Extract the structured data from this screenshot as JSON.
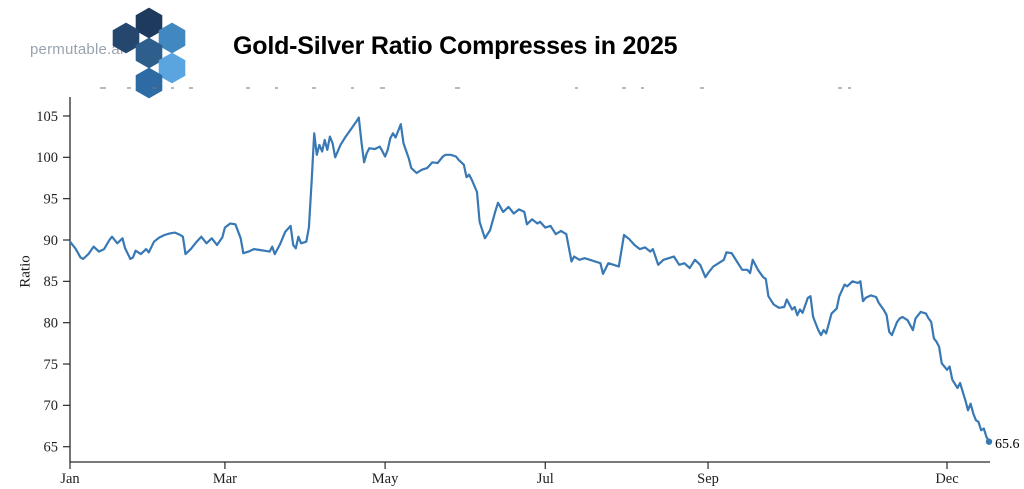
{
  "header": {
    "logo_text": "permutable.ai",
    "title": "Gold-Silver Ratio Compresses in 2025",
    "logo_hex_colors": [
      "#1e3a5c",
      "#26476d",
      "#4187c0",
      "#2d5e8c",
      "#5aa5e0",
      "#2e6ba5"
    ]
  },
  "chart_data": {
    "type": "line",
    "title": "Gold-Silver Ratio Compresses in 2025",
    "xlabel": "",
    "ylabel": "Ratio",
    "x_unit": "day of year 2025",
    "x_tick_labels": [
      "Jan",
      "Mar",
      "May",
      "Jul",
      "Sep",
      "Dec"
    ],
    "x_tick_days": [
      0,
      59,
      120,
      181,
      243,
      334
    ],
    "y_ticks": [
      65,
      70,
      75,
      80,
      85,
      90,
      95,
      100,
      105
    ],
    "ylim": [
      63.2,
      107.3
    ],
    "xlim_days": [
      0,
      350.3
    ],
    "grid": false,
    "legend": "none",
    "line_color": "#3878b4",
    "axis_color": "#2a2a2a",
    "final_label": "65.6",
    "final_value": 65.6,
    "series": [
      {
        "name": "Gold-Silver Ratio",
        "days": [
          0,
          2,
          4,
          5,
          7,
          9,
          11,
          13,
          15,
          16,
          18,
          20,
          21,
          23,
          24,
          25,
          27,
          29,
          30,
          32,
          34,
          36,
          38,
          40,
          42,
          43,
          44,
          46,
          48,
          50,
          52,
          54,
          56,
          58,
          59,
          61,
          63,
          65,
          66,
          68,
          70,
          72,
          74,
          76,
          77,
          78,
          80,
          82,
          84,
          85,
          86,
          87,
          88,
          90,
          91,
          92,
          93,
          94,
          95,
          96,
          97,
          98,
          99,
          100,
          101,
          103,
          105,
          107,
          109,
          110,
          111,
          112,
          113,
          114,
          116,
          118,
          119,
          120,
          121,
          122,
          123,
          124,
          126,
          127,
          128,
          129,
          130,
          132,
          134,
          136,
          138,
          140,
          142,
          143,
          145,
          147,
          148,
          150,
          151,
          152,
          153,
          155,
          156,
          158,
          160,
          162,
          163,
          165,
          167,
          169,
          171,
          173,
          174,
          176,
          178,
          179,
          181,
          183,
          185,
          187,
          189,
          191,
          192,
          194,
          196,
          198,
          200,
          202,
          203,
          205,
          207,
          209,
          211,
          213,
          215,
          217,
          219,
          221,
          222,
          224,
          226,
          228,
          230,
          232,
          234,
          236,
          238,
          240,
          242,
          243,
          245,
          247,
          249,
          250,
          252,
          254,
          256,
          258,
          259,
          260,
          262,
          264,
          265,
          266,
          268,
          270,
          272,
          273,
          275,
          276,
          277,
          278,
          279,
          281,
          282,
          283,
          284,
          285,
          286,
          287,
          288,
          290,
          292,
          293,
          295,
          296,
          298,
          300,
          301,
          302,
          303,
          305,
          307,
          308,
          310,
          311,
          312,
          313,
          315,
          316,
          317,
          319,
          321,
          322,
          323,
          324,
          326,
          327,
          328,
          329,
          330,
          331,
          332,
          334,
          335,
          336,
          338,
          339,
          340,
          341,
          342,
          343,
          344,
          345,
          346,
          347,
          348,
          349,
          350
        ],
        "values": [
          89.8,
          89.0,
          87.9,
          87.7,
          88.3,
          89.2,
          88.6,
          88.9,
          90.0,
          90.4,
          89.6,
          90.2,
          89.0,
          87.7,
          87.9,
          88.7,
          88.3,
          88.9,
          88.5,
          89.8,
          90.3,
          90.6,
          90.8,
          90.9,
          90.6,
          90.4,
          88.3,
          88.9,
          89.7,
          90.4,
          89.6,
          90.2,
          89.4,
          90.3,
          91.5,
          92.0,
          91.9,
          90.2,
          88.4,
          88.6,
          88.9,
          88.8,
          88.7,
          88.6,
          89.2,
          88.3,
          89.5,
          91.0,
          91.7,
          89.4,
          89.0,
          90.4,
          89.6,
          89.8,
          91.5,
          97.0,
          102.9,
          100.3,
          101.5,
          100.7,
          102.1,
          100.9,
          102.5,
          101.7,
          100.0,
          101.5,
          102.5,
          103.4,
          104.3,
          104.8,
          101.8,
          99.4,
          100.5,
          101.1,
          101.0,
          101.3,
          100.7,
          100.1,
          100.9,
          102.3,
          102.9,
          102.4,
          104.0,
          101.7,
          100.8,
          99.9,
          98.7,
          98.1,
          98.5,
          98.7,
          99.4,
          99.3,
          100.1,
          100.3,
          100.3,
          100.1,
          99.7,
          99.1,
          97.6,
          97.9,
          97.3,
          95.8,
          92.2,
          90.2,
          91.2,
          93.5,
          94.5,
          93.4,
          94.0,
          93.2,
          93.7,
          93.4,
          91.9,
          92.5,
          92.0,
          92.2,
          91.5,
          91.7,
          90.7,
          91.1,
          90.7,
          87.4,
          88.0,
          87.6,
          87.8,
          87.6,
          87.4,
          87.2,
          85.9,
          87.2,
          87.0,
          86.8,
          90.6,
          90.1,
          89.4,
          88.9,
          89.1,
          88.6,
          88.9,
          87.0,
          87.6,
          87.8,
          88.0,
          87.0,
          87.2,
          86.6,
          87.6,
          87.0,
          85.5,
          86.0,
          86.8,
          87.2,
          87.6,
          88.5,
          88.4,
          87.4,
          86.4,
          86.4,
          86.0,
          87.6,
          86.4,
          85.5,
          85.3,
          83.2,
          82.2,
          81.8,
          81.9,
          82.8,
          81.6,
          81.9,
          80.9,
          81.6,
          81.2,
          83.0,
          83.2,
          80.7,
          79.9,
          79.1,
          78.5,
          79.1,
          78.7,
          81.1,
          81.7,
          83.2,
          84.6,
          84.4,
          85.0,
          84.8,
          85.0,
          82.6,
          83.0,
          83.3,
          83.1,
          82.4,
          81.5,
          80.9,
          78.9,
          78.5,
          80.1,
          80.5,
          80.7,
          80.3,
          79.1,
          80.5,
          80.9,
          81.3,
          81.1,
          80.5,
          80.1,
          78.1,
          77.7,
          77.1,
          75.1,
          74.3,
          74.7,
          73.1,
          72.1,
          72.7,
          71.6,
          70.6,
          69.4,
          70.2,
          69.0,
          68.2,
          68.0,
          67.0,
          67.2,
          66.2,
          65.6
        ]
      }
    ]
  },
  "artifacts": {
    "description": "faint tops of cropped-off text above plot",
    "marks": [
      [
        100,
        6
      ],
      [
        127,
        4
      ],
      [
        152,
        5
      ],
      [
        171,
        3
      ],
      [
        189,
        4
      ],
      [
        246,
        4
      ],
      [
        275,
        3
      ],
      [
        312,
        4
      ],
      [
        351,
        3
      ],
      [
        380,
        5
      ],
      [
        455,
        5
      ],
      [
        575,
        3
      ],
      [
        622,
        4
      ],
      [
        641,
        3
      ],
      [
        700,
        4
      ],
      [
        838,
        4
      ],
      [
        848,
        3
      ]
    ]
  }
}
